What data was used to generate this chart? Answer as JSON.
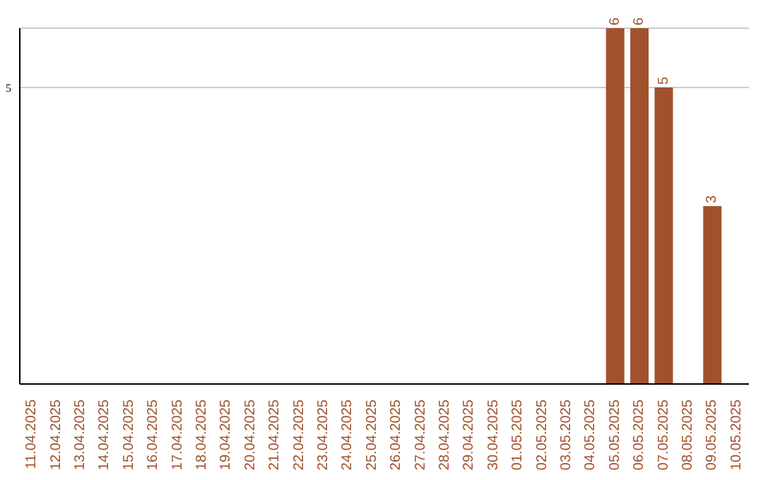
{
  "chart_data": {
    "type": "bar",
    "categories": [
      "11.04.2025",
      "12.04.2025",
      "13.04.2025",
      "14.04.2025",
      "15.04.2025",
      "16.04.2025",
      "17.04.2025",
      "18.04.2025",
      "19.04.2025",
      "20.04.2025",
      "21.04.2025",
      "22.04.2025",
      "23.04.2025",
      "24.04.2025",
      "25.04.2025",
      "26.04.2025",
      "27.04.2025",
      "28.04.2025",
      "29.04.2025",
      "30.04.2025",
      "01.05.2025",
      "02.05.2025",
      "03.05.2025",
      "04.05.2025",
      "05.05.2025",
      "06.05.2025",
      "07.05.2025",
      "08.05.2025",
      "09.05.2025",
      "10.05.2025"
    ],
    "values": [
      null,
      null,
      null,
      null,
      null,
      null,
      null,
      null,
      null,
      null,
      null,
      null,
      null,
      null,
      null,
      null,
      null,
      null,
      null,
      null,
      null,
      null,
      null,
      null,
      6,
      6,
      5,
      null,
      3,
      null
    ],
    "data_labels": true,
    "color": "#a0522d",
    "ylim": [
      0,
      6
    ],
    "yticks": [
      5
    ],
    "grid": "y"
  }
}
